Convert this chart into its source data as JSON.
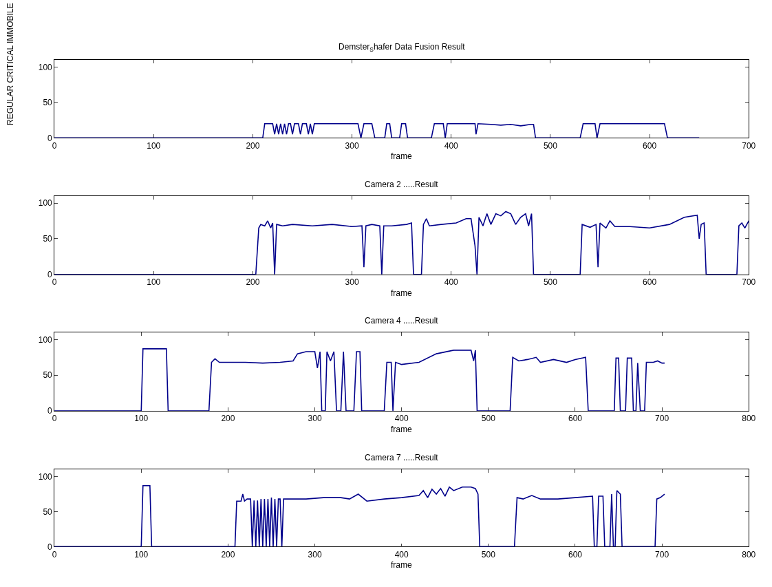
{
  "chart_data": [
    {
      "type": "line",
      "title": "Demster$_{S}$hafer Data Fusion Result",
      "xlabel": "frame",
      "ylabel": "REGULAR CRITICAL IMMOBILE",
      "xlim": [
        0,
        700
      ],
      "xticks": [
        0,
        100,
        200,
        300,
        400,
        500,
        600,
        700
      ],
      "ylim": [
        0,
        110
      ],
      "yticks": [
        0,
        50,
        100
      ],
      "series": [
        {
          "color": "#00008b",
          "x": [
            0,
            210,
            212,
            220,
            222,
            224,
            226,
            228,
            230,
            232,
            234,
            236,
            238,
            240,
            242,
            246,
            248,
            250,
            254,
            256,
            258,
            260,
            262,
            306,
            309,
            312,
            320,
            323,
            333,
            335,
            338,
            340,
            348,
            350,
            354,
            356,
            380,
            383,
            392,
            394,
            396,
            424,
            425,
            427,
            440,
            450,
            460,
            470,
            480,
            483,
            485,
            530,
            533,
            545,
            547,
            550,
            615,
            618,
            650
          ],
          "values": [
            0,
            0,
            20,
            20,
            5,
            20,
            5,
            20,
            5,
            20,
            5,
            20,
            20,
            5,
            20,
            20,
            5,
            20,
            20,
            5,
            20,
            5,
            20,
            20,
            0,
            20,
            20,
            0,
            0,
            20,
            20,
            0,
            0,
            20,
            20,
            0,
            0,
            20,
            20,
            0,
            20,
            20,
            5,
            20,
            19,
            18,
            19,
            17,
            19,
            19,
            0,
            0,
            20,
            20,
            0,
            20,
            20,
            0,
            0
          ]
        }
      ]
    },
    {
      "type": "line",
      "title": "Camera 2 .....Result",
      "xlabel": "frame",
      "xlim": [
        0,
        700
      ],
      "xticks": [
        0,
        100,
        200,
        300,
        400,
        500,
        600,
        700
      ],
      "ylim": [
        0,
        110
      ],
      "yticks": [
        0,
        50,
        100
      ],
      "series": [
        {
          "color": "#00008b",
          "x": [
            0,
            203,
            206,
            208,
            212,
            215,
            218,
            220,
            222,
            224,
            230,
            240,
            260,
            280,
            300,
            310,
            312,
            314,
            320,
            328,
            330,
            332,
            340,
            355,
            360,
            362,
            370,
            372,
            375,
            378,
            390,
            405,
            415,
            420,
            424,
            426,
            428,
            432,
            436,
            440,
            445,
            450,
            455,
            460,
            465,
            470,
            475,
            478,
            481,
            483,
            530,
            532,
            540,
            546,
            548,
            550,
            556,
            560,
            565,
            580,
            600,
            620,
            635,
            648,
            650,
            652,
            655,
            657,
            688,
            690,
            693,
            696,
            700
          ],
          "values": [
            0,
            0,
            65,
            70,
            68,
            75,
            65,
            72,
            0,
            70,
            68,
            70,
            68,
            70,
            67,
            68,
            10,
            68,
            70,
            68,
            0,
            68,
            68,
            70,
            72,
            0,
            0,
            70,
            78,
            68,
            70,
            72,
            78,
            78,
            40,
            0,
            80,
            68,
            85,
            70,
            85,
            82,
            88,
            85,
            70,
            80,
            85,
            68,
            85,
            0,
            0,
            70,
            66,
            70,
            10,
            72,
            65,
            75,
            67,
            67,
            65,
            70,
            80,
            83,
            50,
            70,
            72,
            0,
            0,
            68,
            72,
            65,
            75
          ]
        }
      ]
    },
    {
      "type": "line",
      "title": "Camera 4 .....Result",
      "xlabel": "frame",
      "xlim": [
        0,
        800
      ],
      "xticks": [
        0,
        100,
        200,
        300,
        400,
        500,
        600,
        700,
        800
      ],
      "ylim": [
        0,
        110
      ],
      "yticks": [
        0,
        50,
        100
      ],
      "series": [
        {
          "color": "#00008b",
          "x": [
            0,
            100,
            102,
            129,
            131,
            178,
            181,
            185,
            190,
            200,
            220,
            240,
            260,
            275,
            280,
            290,
            300,
            303,
            306,
            308,
            312,
            314,
            318,
            322,
            325,
            330,
            333,
            336,
            345,
            348,
            352,
            354,
            380,
            383,
            388,
            390,
            393,
            400,
            420,
            440,
            460,
            480,
            483,
            485,
            487,
            525,
            528,
            535,
            545,
            555,
            560,
            575,
            590,
            600,
            612,
            615,
            645,
            647,
            650,
            652,
            658,
            660,
            665,
            667,
            670,
            672,
            675,
            680,
            682,
            690,
            695,
            700,
            703
          ],
          "values": [
            0,
            0,
            87,
            87,
            0,
            0,
            68,
            73,
            68,
            68,
            68,
            67,
            68,
            70,
            80,
            83,
            83,
            60,
            83,
            0,
            0,
            83,
            70,
            83,
            0,
            0,
            83,
            0,
            0,
            83,
            83,
            0,
            0,
            68,
            68,
            0,
            68,
            65,
            68,
            80,
            85,
            85,
            70,
            85,
            0,
            0,
            75,
            70,
            72,
            75,
            68,
            72,
            68,
            72,
            75,
            0,
            0,
            74,
            74,
            0,
            0,
            74,
            74,
            0,
            0,
            67,
            0,
            0,
            68,
            68,
            70,
            67,
            67
          ]
        }
      ]
    },
    {
      "type": "line",
      "title": "Camera 7 .....Result",
      "xlabel": "frame",
      "xlim": [
        0,
        800
      ],
      "xticks": [
        0,
        100,
        200,
        300,
        400,
        500,
        600,
        700,
        800
      ],
      "ylim": [
        0,
        110
      ],
      "yticks": [
        0,
        50,
        100
      ],
      "series": [
        {
          "color": "#00008b",
          "x": [
            0,
            100,
            102,
            110,
            112,
            208,
            210,
            215,
            217,
            219,
            222,
            226,
            228,
            230,
            232,
            234,
            236,
            238,
            240,
            242,
            244,
            246,
            248,
            250,
            252,
            254,
            256,
            258,
            260,
            262,
            264,
            270,
            290,
            310,
            330,
            340,
            350,
            360,
            380,
            400,
            420,
            425,
            430,
            435,
            440,
            445,
            450,
            455,
            460,
            470,
            480,
            485,
            488,
            490,
            530,
            533,
            540,
            550,
            560,
            580,
            600,
            620,
            622,
            625,
            627,
            632,
            634,
            640,
            642,
            644,
            646,
            648,
            652,
            654,
            692,
            694,
            698,
            703
          ],
          "values": [
            0,
            0,
            87,
            87,
            0,
            0,
            65,
            65,
            75,
            65,
            68,
            68,
            0,
            66,
            0,
            66,
            0,
            68,
            0,
            68,
            0,
            68,
            0,
            70,
            0,
            68,
            0,
            68,
            68,
            0,
            68,
            68,
            68,
            70,
            70,
            68,
            75,
            65,
            68,
            70,
            73,
            80,
            70,
            82,
            75,
            83,
            72,
            85,
            80,
            85,
            85,
            83,
            75,
            0,
            0,
            70,
            68,
            73,
            68,
            68,
            70,
            72,
            0,
            0,
            72,
            72,
            0,
            0,
            75,
            0,
            0,
            80,
            75,
            0,
            0,
            68,
            70,
            75
          ]
        }
      ]
    }
  ]
}
